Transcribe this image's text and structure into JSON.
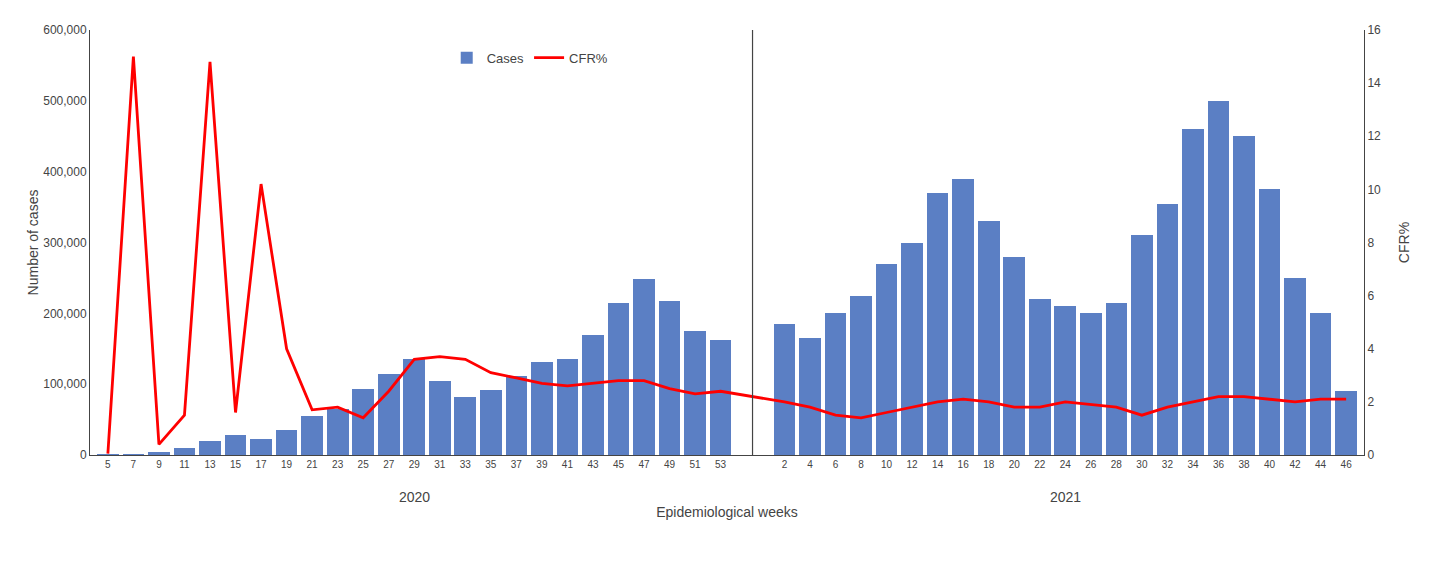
{
  "chart_data": {
    "type": "bar",
    "x_label": "Epidemiological weeks",
    "y_label": "Number of cases",
    "y2_label": "CFR%",
    "categories": [
      [
        "2020",
        "5"
      ],
      [
        "2020",
        "7"
      ],
      [
        "2020",
        "9"
      ],
      [
        "2020",
        "11"
      ],
      [
        "2020",
        "13"
      ],
      [
        "2020",
        "15"
      ],
      [
        "2020",
        "17"
      ],
      [
        "2020",
        "19"
      ],
      [
        "2020",
        "21"
      ],
      [
        "2020",
        "23"
      ],
      [
        "2020",
        "25"
      ],
      [
        "2020",
        "27"
      ],
      [
        "2020",
        "29"
      ],
      [
        "2020",
        "31"
      ],
      [
        "2020",
        "33"
      ],
      [
        "2020",
        "35"
      ],
      [
        "2020",
        "37"
      ],
      [
        "2020",
        "39"
      ],
      [
        "2020",
        "41"
      ],
      [
        "2020",
        "43"
      ],
      [
        "2020",
        "45"
      ],
      [
        "2020",
        "47"
      ],
      [
        "2020",
        "49"
      ],
      [
        "2020",
        "51"
      ],
      [
        "2020",
        "53"
      ],
      [
        "2021",
        "2"
      ],
      [
        "2021",
        "4"
      ],
      [
        "2021",
        "6"
      ],
      [
        "2021",
        "8"
      ],
      [
        "2021",
        "10"
      ],
      [
        "2021",
        "12"
      ],
      [
        "2021",
        "14"
      ],
      [
        "2021",
        "16"
      ],
      [
        "2021",
        "18"
      ],
      [
        "2021",
        "20"
      ],
      [
        "2021",
        "22"
      ],
      [
        "2021",
        "24"
      ],
      [
        "2021",
        "26"
      ],
      [
        "2021",
        "28"
      ],
      [
        "2021",
        "30"
      ],
      [
        "2021",
        "32"
      ],
      [
        "2021",
        "34"
      ],
      [
        "2021",
        "36"
      ],
      [
        "2021",
        "38"
      ],
      [
        "2021",
        "40"
      ],
      [
        "2021",
        "42"
      ],
      [
        "2021",
        "44"
      ],
      [
        "2021",
        "46"
      ]
    ],
    "series": [
      {
        "name": "Cases",
        "type": "bar",
        "color": "#5b7fc4",
        "values": [
          500,
          1200,
          4000,
          10000,
          20000,
          28000,
          22000,
          35000,
          55000,
          65000,
          93000,
          115000,
          135000,
          105000,
          82000,
          92000,
          112000,
          132000,
          135000,
          170000,
          215000,
          248000,
          218000,
          175000,
          162000,
          185000,
          165000,
          200000,
          225000,
          270000,
          300000,
          370000,
          390000,
          330000,
          280000,
          220000,
          210000,
          200000,
          215000,
          310000,
          355000,
          460000,
          500000,
          450000,
          375000,
          250000,
          200000,
          90000
        ]
      },
      {
        "name": "CFR%",
        "type": "line",
        "axis": "y2",
        "color": "#ff0000",
        "values": [
          0.05,
          15.0,
          0.4,
          1.5,
          14.8,
          1.6,
          10.2,
          4.0,
          1.7,
          1.8,
          1.4,
          2.4,
          3.6,
          3.7,
          3.6,
          3.1,
          2.9,
          2.7,
          2.6,
          2.7,
          2.8,
          2.8,
          2.5,
          2.3,
          2.4,
          2.0,
          1.8,
          1.5,
          1.4,
          1.6,
          1.8,
          2.0,
          2.1,
          2.0,
          1.8,
          1.8,
          2.0,
          1.9,
          1.8,
          1.5,
          1.8,
          2.0,
          2.2,
          2.2,
          2.1,
          2.0,
          2.1,
          2.1
        ]
      }
    ],
    "ylim": [
      0,
      600000
    ],
    "yticks": [
      0,
      {
        "value": 100000,
        "label": "100,000"
      },
      {
        "value": 200000,
        "label": "200,000"
      },
      {
        "value": 300000,
        "label": "300,000"
      },
      {
        "value": 400000,
        "label": "400,000"
      },
      {
        "value": 500000,
        "label": "500,000"
      },
      {
        "value": 600000,
        "label": "600,000"
      }
    ],
    "y2lim": [
      0,
      16
    ],
    "y2ticks": [
      0,
      2,
      4,
      6,
      8,
      10,
      12,
      14,
      16
    ],
    "legend": "upper left",
    "grid": false
  }
}
